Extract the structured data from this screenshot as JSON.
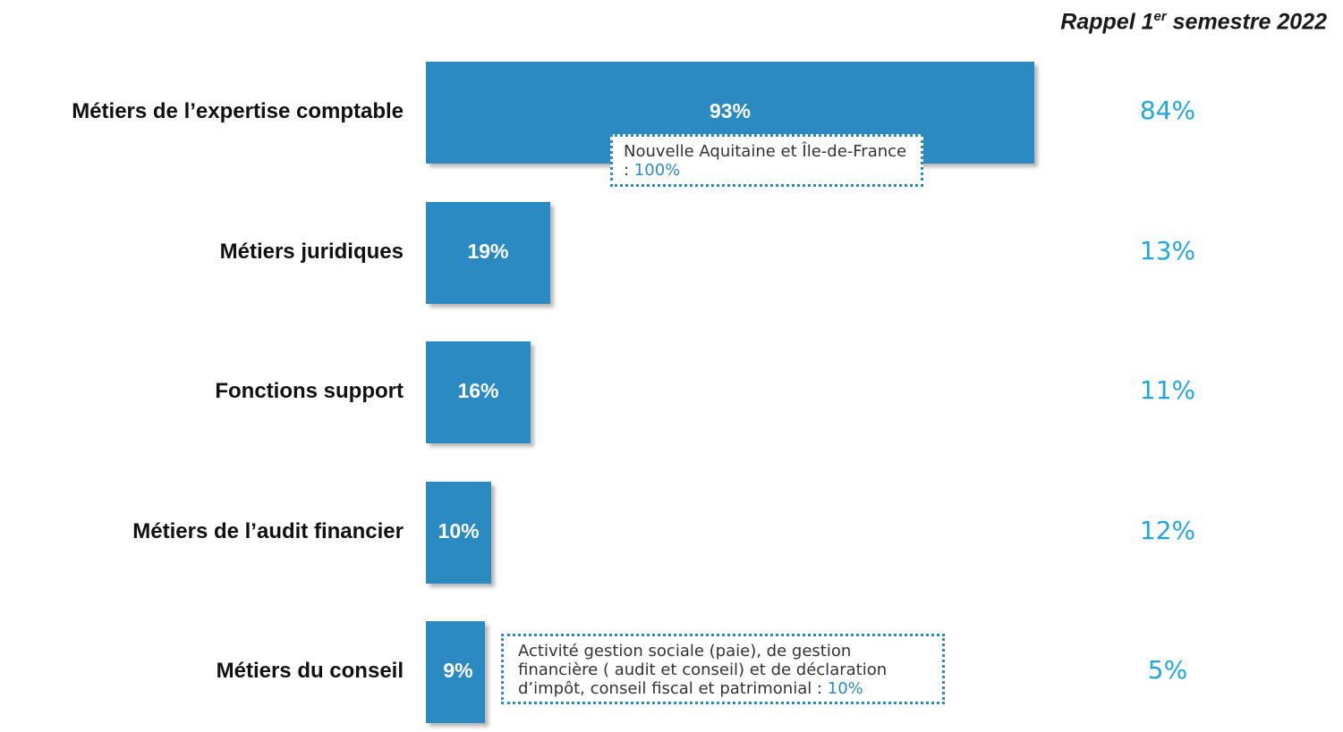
{
  "header": {
    "prefix": "Rappel 1",
    "sup": "er",
    "suffix": " semestre 2022"
  },
  "colors": {
    "bar": "#2b8ac2",
    "recall_text": "#21a6dc",
    "note_border": "#2b8ac2"
  },
  "chart_data": {
    "type": "bar",
    "orientation": "horizontal",
    "categories": [
      "Métiers de l’expertise comptable",
      "Métiers juridiques",
      "Fonctions support",
      "Métiers de l’audit financier",
      "Métiers du conseil"
    ],
    "values": [
      93,
      19,
      16,
      10,
      9
    ],
    "value_labels": [
      "93%",
      "19%",
      "16%",
      "10%",
      "9%"
    ],
    "recall_values": [
      84,
      13,
      11,
      12,
      5
    ],
    "recall_labels": [
      "84%",
      "13%",
      "11%",
      "12%",
      "5%"
    ],
    "xlim": [
      0,
      100
    ],
    "grid": false,
    "annotations": [
      {
        "category_index": 0,
        "text": "Nouvelle Aquitaine et Île-de-France : ",
        "value": "100%"
      },
      {
        "category_index": 4,
        "text": "Activité gestion sociale (paie), de gestion financière ( audit et conseil) et de déclaration d’impôt, conseil fiscal et patrimonial : ",
        "value": "10%"
      }
    ]
  }
}
